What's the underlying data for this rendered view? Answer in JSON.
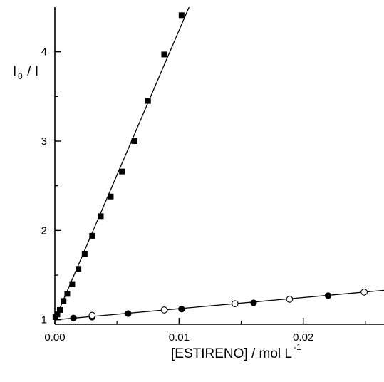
{
  "chart_data": {
    "type": "scatter",
    "xlabel": "[ESTIRENO] / mol L",
    "xlabel_superscript": "-1",
    "ylabel_main": "I",
    "ylabel_subscript": "0",
    "ylabel_rest": " / I",
    "xlim": [
      0,
      0.0265
    ],
    "ylim": [
      0.95,
      4.5
    ],
    "x_ticks": [
      0.0,
      0.01,
      0.02
    ],
    "x_tick_labels": [
      "0.00",
      "0.01",
      "0.02"
    ],
    "y_ticks": [
      1,
      2,
      3,
      4
    ],
    "y_tick_labels": [
      "1",
      "2",
      "3",
      "4"
    ],
    "grid": false,
    "series": [
      {
        "marker": "filled-square",
        "x": [
          5e-05,
          0.0002,
          0.0004,
          0.0007,
          0.001,
          0.0014,
          0.0019,
          0.0024,
          0.003,
          0.0037,
          0.0045,
          0.0054,
          0.0064,
          0.0075,
          0.0088,
          0.0102
        ],
        "y": [
          1.03,
          1.06,
          1.11,
          1.21,
          1.29,
          1.4,
          1.57,
          1.74,
          1.94,
          2.16,
          2.38,
          2.66,
          3.0,
          3.45,
          3.97,
          4.41
        ],
        "fit": {
          "x0": 0.0,
          "y0": 1.0,
          "x1": 0.0108,
          "y1": 4.5
        }
      },
      {
        "marker": "filled-circle",
        "x": [
          0.0015,
          0.003,
          0.0059,
          0.0102,
          0.016,
          0.022
        ],
        "y": [
          1.02,
          1.03,
          1.07,
          1.12,
          1.19,
          1.27
        ],
        "fit": {
          "x0": 0.0,
          "y0": 1.0,
          "x1": 0.0265,
          "y1": 1.33
        }
      },
      {
        "marker": "open-circle",
        "x": [
          0.003,
          0.0088,
          0.0145,
          0.0189,
          0.0249
        ],
        "y": [
          1.05,
          1.11,
          1.18,
          1.23,
          1.31
        ]
      }
    ]
  }
}
